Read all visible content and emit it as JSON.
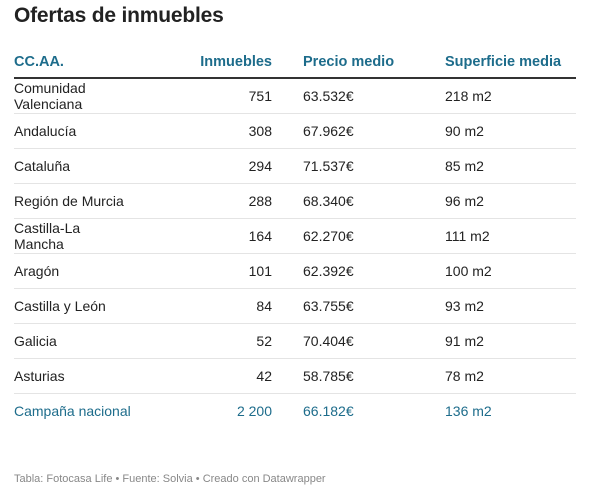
{
  "title": "Ofertas de inmuebles",
  "table": {
    "header": [
      "CC.AA.",
      "Inmuebles",
      "Precio medio",
      "Superficie media"
    ],
    "rows": [
      [
        "Comunidad Valenciana",
        "751",
        "63.532€",
        "218 m2"
      ],
      [
        "Andalucía",
        "308",
        "67.962€",
        "90 m2"
      ],
      [
        "Cataluña",
        "294",
        "71.537€",
        "85 m2"
      ],
      [
        "Región de Murcia",
        "288",
        "68.340€",
        "96 m2"
      ],
      [
        "Castilla-La Mancha",
        "164",
        "62.270€",
        "111 m2"
      ],
      [
        "Aragón",
        "101",
        "62.392€",
        "100 m2"
      ],
      [
        "Castilla y León",
        "84",
        "63.755€",
        "93 m2"
      ],
      [
        "Galicia",
        "52",
        "70.404€",
        "91 m2"
      ],
      [
        "Asturias",
        "42",
        "58.785€",
        "78 m2"
      ],
      [
        "Campaña nacional",
        "2 200",
        "66.182€",
        "136 m2"
      ]
    ]
  },
  "footer": "Tabla: Fotocasa Life • Fuente: Solvia • Creado con Datawrapper"
}
